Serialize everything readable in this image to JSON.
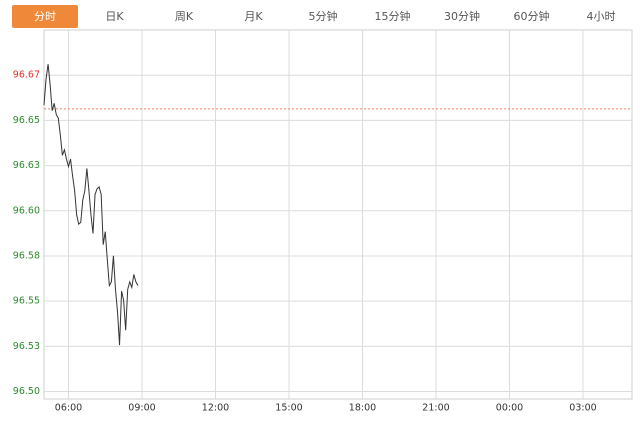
{
  "tabs": [
    "分时",
    "日K",
    "周K",
    "月K",
    "5分钟",
    "15分钟",
    "30分钟",
    "60分钟",
    "4小时"
  ],
  "active_tab": 0,
  "chart_data": {
    "type": "line",
    "x": [
      "05:00",
      "05:05",
      "05:10",
      "05:15",
      "05:20",
      "05:25",
      "05:30",
      "05:35",
      "05:40",
      "05:45",
      "05:50",
      "05:55",
      "06:00",
      "06:05",
      "06:10",
      "06:15",
      "06:20",
      "06:25",
      "06:30",
      "06:35",
      "06:40",
      "06:45",
      "06:50",
      "06:55",
      "07:00",
      "07:05",
      "07:10",
      "07:15",
      "07:20",
      "07:25",
      "07:30",
      "07:35",
      "07:40",
      "07:45",
      "07:50",
      "07:55",
      "08:00",
      "08:05",
      "08:10",
      "08:15",
      "08:20",
      "08:25",
      "08:30",
      "08:35",
      "08:40",
      "08:45",
      "08:50"
    ],
    "series": [
      {
        "color": "#333333",
        "values": [
          96.658,
          96.672,
          96.68,
          96.669,
          96.655,
          96.659,
          96.653,
          96.651,
          96.642,
          96.631,
          96.634,
          96.629,
          96.625,
          96.629,
          96.62,
          96.612,
          96.599,
          96.594,
          96.595,
          96.607,
          96.612,
          96.624,
          96.612,
          96.599,
          96.589,
          96.61,
          96.613,
          96.614,
          96.61,
          96.583,
          96.59,
          96.575,
          96.561,
          96.563,
          96.577,
          96.559,
          96.547,
          96.529,
          96.558,
          96.553,
          96.537,
          96.559,
          96.563,
          96.56,
          96.567,
          96.563,
          96.561
        ]
      }
    ],
    "prev_close": 96.656,
    "prev_close_color": "#f08060",
    "up_color": "#e0302a",
    "down_color": "#2e8b2e",
    "xlim": [
      "05:00",
      "05:00"
    ],
    "xticks": [
      "06:00",
      "09:00",
      "12:00",
      "15:00",
      "18:00",
      "21:00",
      "00:00",
      "03:00"
    ],
    "ylim": [
      96.5,
      96.6984
    ],
    "yticks": [
      {
        "value": 96.504,
        "label": "96.50"
      },
      {
        "value": 96.5283,
        "label": "96.53"
      },
      {
        "value": 96.5526,
        "label": "96.55"
      },
      {
        "value": 96.5769,
        "label": "96.58"
      },
      {
        "value": 96.6012,
        "label": "96.60"
      },
      {
        "value": 96.6255,
        "label": "96.63"
      },
      {
        "value": 96.6498,
        "label": "96.65"
      },
      {
        "value": 96.6741,
        "label": "96.67"
      }
    ],
    "grid": true
  }
}
